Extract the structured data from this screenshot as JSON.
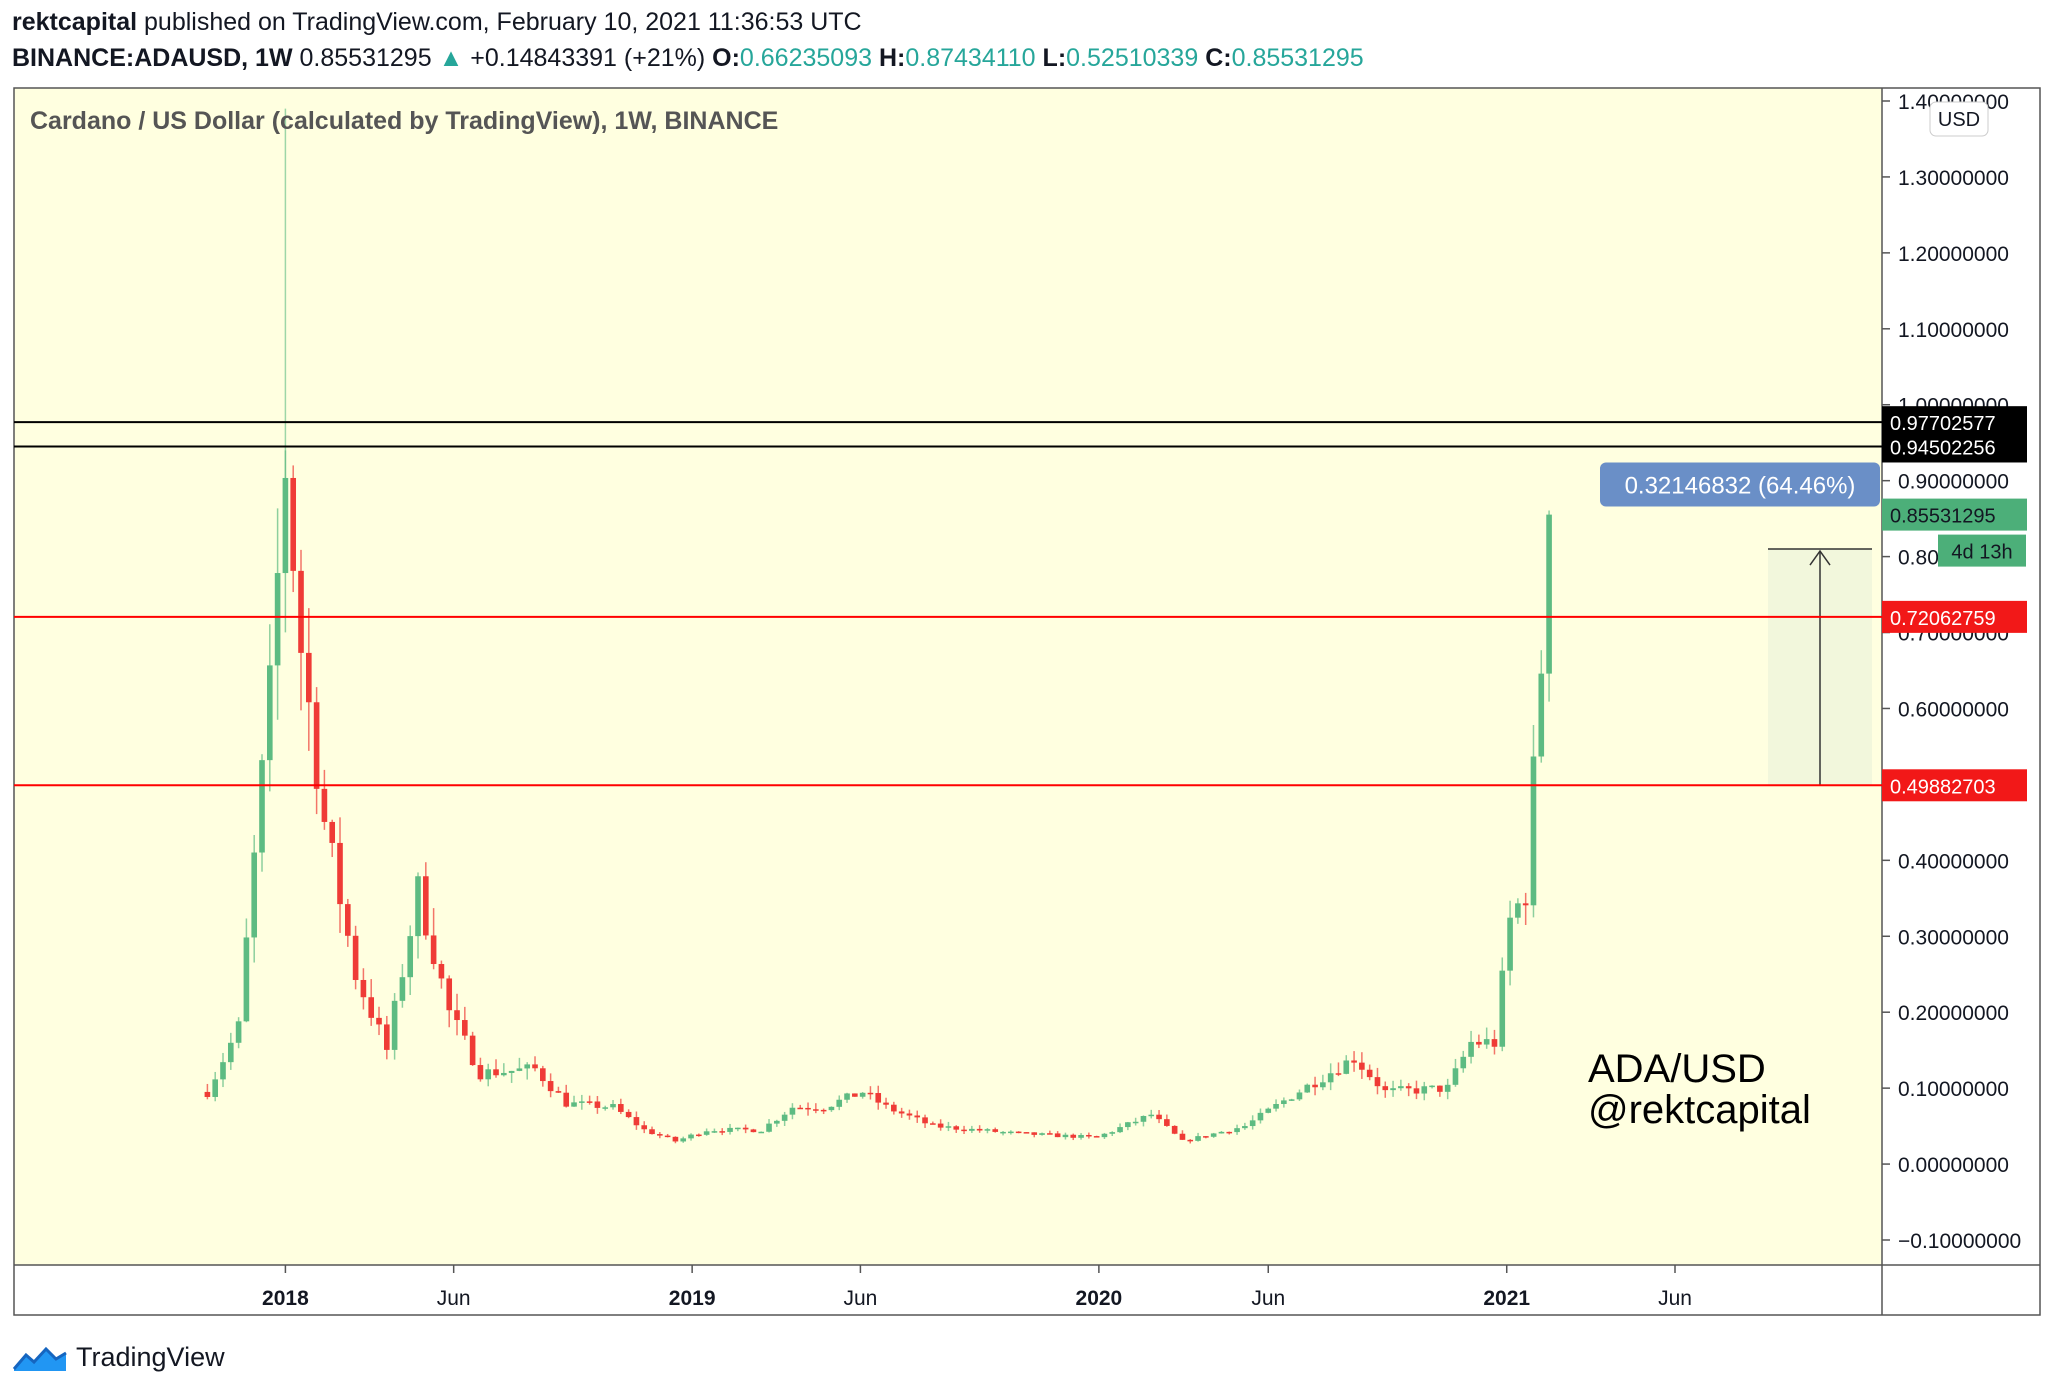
{
  "header": {
    "author": "rektcapital",
    "published_text": "published on TradingView.com, February 10, 2021 11:36:53 UTC",
    "symbol": "BINANCE:ADAUSD, 1W",
    "price": "0.85531295",
    "change": "+0.14843391 (+21%)",
    "o_label": "O:",
    "o_value": "0.66235093",
    "h_label": "H:",
    "h_value": "0.87434110",
    "l_label": "L:",
    "l_value": "0.52510339",
    "c_label": "C:",
    "c_value": "0.85531295"
  },
  "footer": {
    "brand": "TradingView"
  },
  "colors": {
    "background": "#ffffe0",
    "up": "#5dbb82",
    "down": "#ef3b36",
    "support_line": "#ff0000",
    "resistance_line": "#000000",
    "measure_fill": "#f2f7dc",
    "measure_label": "#6a8fc7"
  },
  "chart_data": {
    "type": "candlestick",
    "title": "Cardano / US Dollar (calculated by TradingView), 1W, BINANCE",
    "currency_badge": "USD",
    "ylim": [
      -0.14,
      1.4
    ],
    "y_ticks": [
      "1.40000000",
      "1.30000000",
      "1.20000000",
      "1.10000000",
      "1.00000000",
      "0.90000000",
      "0.80000000",
      "0.70000000",
      "0.60000000",
      "0.50000000",
      "0.40000000",
      "0.30000000",
      "0.20000000",
      "0.10000000",
      "0.00000000",
      "−0.10000000"
    ],
    "y_tick_values": [
      1.4,
      1.3,
      1.2,
      1.1,
      1.0,
      0.9,
      0.8,
      0.7,
      0.6,
      0.5,
      0.4,
      0.3,
      0.2,
      0.1,
      0.0,
      -0.1
    ],
    "x_ticks": [
      {
        "label": "2018",
        "date": "2018-01-01",
        "bold": true
      },
      {
        "label": "Jun",
        "date": "2018-06-01",
        "bold": false
      },
      {
        "label": "2019",
        "date": "2019-01-01",
        "bold": true
      },
      {
        "label": "Jun",
        "date": "2019-06-01",
        "bold": false
      },
      {
        "label": "2020",
        "date": "2020-01-01",
        "bold": true
      },
      {
        "label": "Jun",
        "date": "2020-06-01",
        "bold": false
      },
      {
        "label": "2021",
        "date": "2021-01-01",
        "bold": true
      },
      {
        "label": "Jun",
        "date": "2021-06-01",
        "bold": false
      }
    ],
    "x_range": [
      "2017-08-07",
      "2021-09-20"
    ],
    "anchors": [
      [
        "2017-10-23",
        0.095
      ],
      [
        "2017-11-20",
        0.18
      ],
      [
        "2017-12-18",
        0.62
      ],
      [
        "2018-01-01",
        0.92
      ],
      [
        "2018-01-15",
        0.68
      ],
      [
        "2018-02-05",
        0.45
      ],
      [
        "2018-03-05",
        0.25
      ],
      [
        "2018-04-02",
        0.15
      ],
      [
        "2018-04-30",
        0.36
      ],
      [
        "2018-05-28",
        0.2
      ],
      [
        "2018-06-25",
        0.12
      ],
      [
        "2018-08-13",
        0.125
      ],
      [
        "2018-09-10",
        0.08
      ],
      [
        "2018-10-22",
        0.075
      ],
      [
        "2018-11-19",
        0.045
      ],
      [
        "2018-12-17",
        0.03
      ],
      [
        "2019-01-14",
        0.045
      ],
      [
        "2019-03-04",
        0.045
      ],
      [
        "2019-04-01",
        0.075
      ],
      [
        "2019-04-29",
        0.075
      ],
      [
        "2019-06-03",
        0.095
      ],
      [
        "2019-06-24",
        0.075
      ],
      [
        "2019-08-05",
        0.05
      ],
      [
        "2019-10-21",
        0.04
      ],
      [
        "2019-12-30",
        0.035
      ],
      [
        "2020-02-17",
        0.065
      ],
      [
        "2020-03-16",
        0.03
      ],
      [
        "2020-05-11",
        0.05
      ],
      [
        "2020-06-22",
        0.09
      ],
      [
        "2020-08-17",
        0.14
      ],
      [
        "2020-09-14",
        0.095
      ],
      [
        "2020-11-09",
        0.1
      ],
      [
        "2020-11-30",
        0.16
      ],
      [
        "2020-12-21",
        0.16
      ],
      [
        "2021-01-04",
        0.32
      ],
      [
        "2021-01-18",
        0.36
      ],
      [
        "2021-02-01",
        0.66
      ],
      [
        "2021-02-08",
        0.8553
      ]
    ],
    "levels": [
      {
        "value": 0.97702577,
        "label": "0.97702577",
        "kind": "resistance"
      },
      {
        "value": 0.94502256,
        "label": "0.94502256",
        "kind": "resistance"
      },
      {
        "value": 0.72062759,
        "label": "0.72062759",
        "kind": "support"
      },
      {
        "value": 0.49882703,
        "label": "0.49882703",
        "kind": "support"
      }
    ],
    "last_price": {
      "value": 0.85531295,
      "label": "0.85531295",
      "countdown": "4d 13h"
    },
    "measure": {
      "from": 0.49882703,
      "to": 0.81,
      "label": "0.32146832 (64.46%)"
    },
    "watermark": [
      "ADA/USD",
      "@rektcapital"
    ]
  }
}
